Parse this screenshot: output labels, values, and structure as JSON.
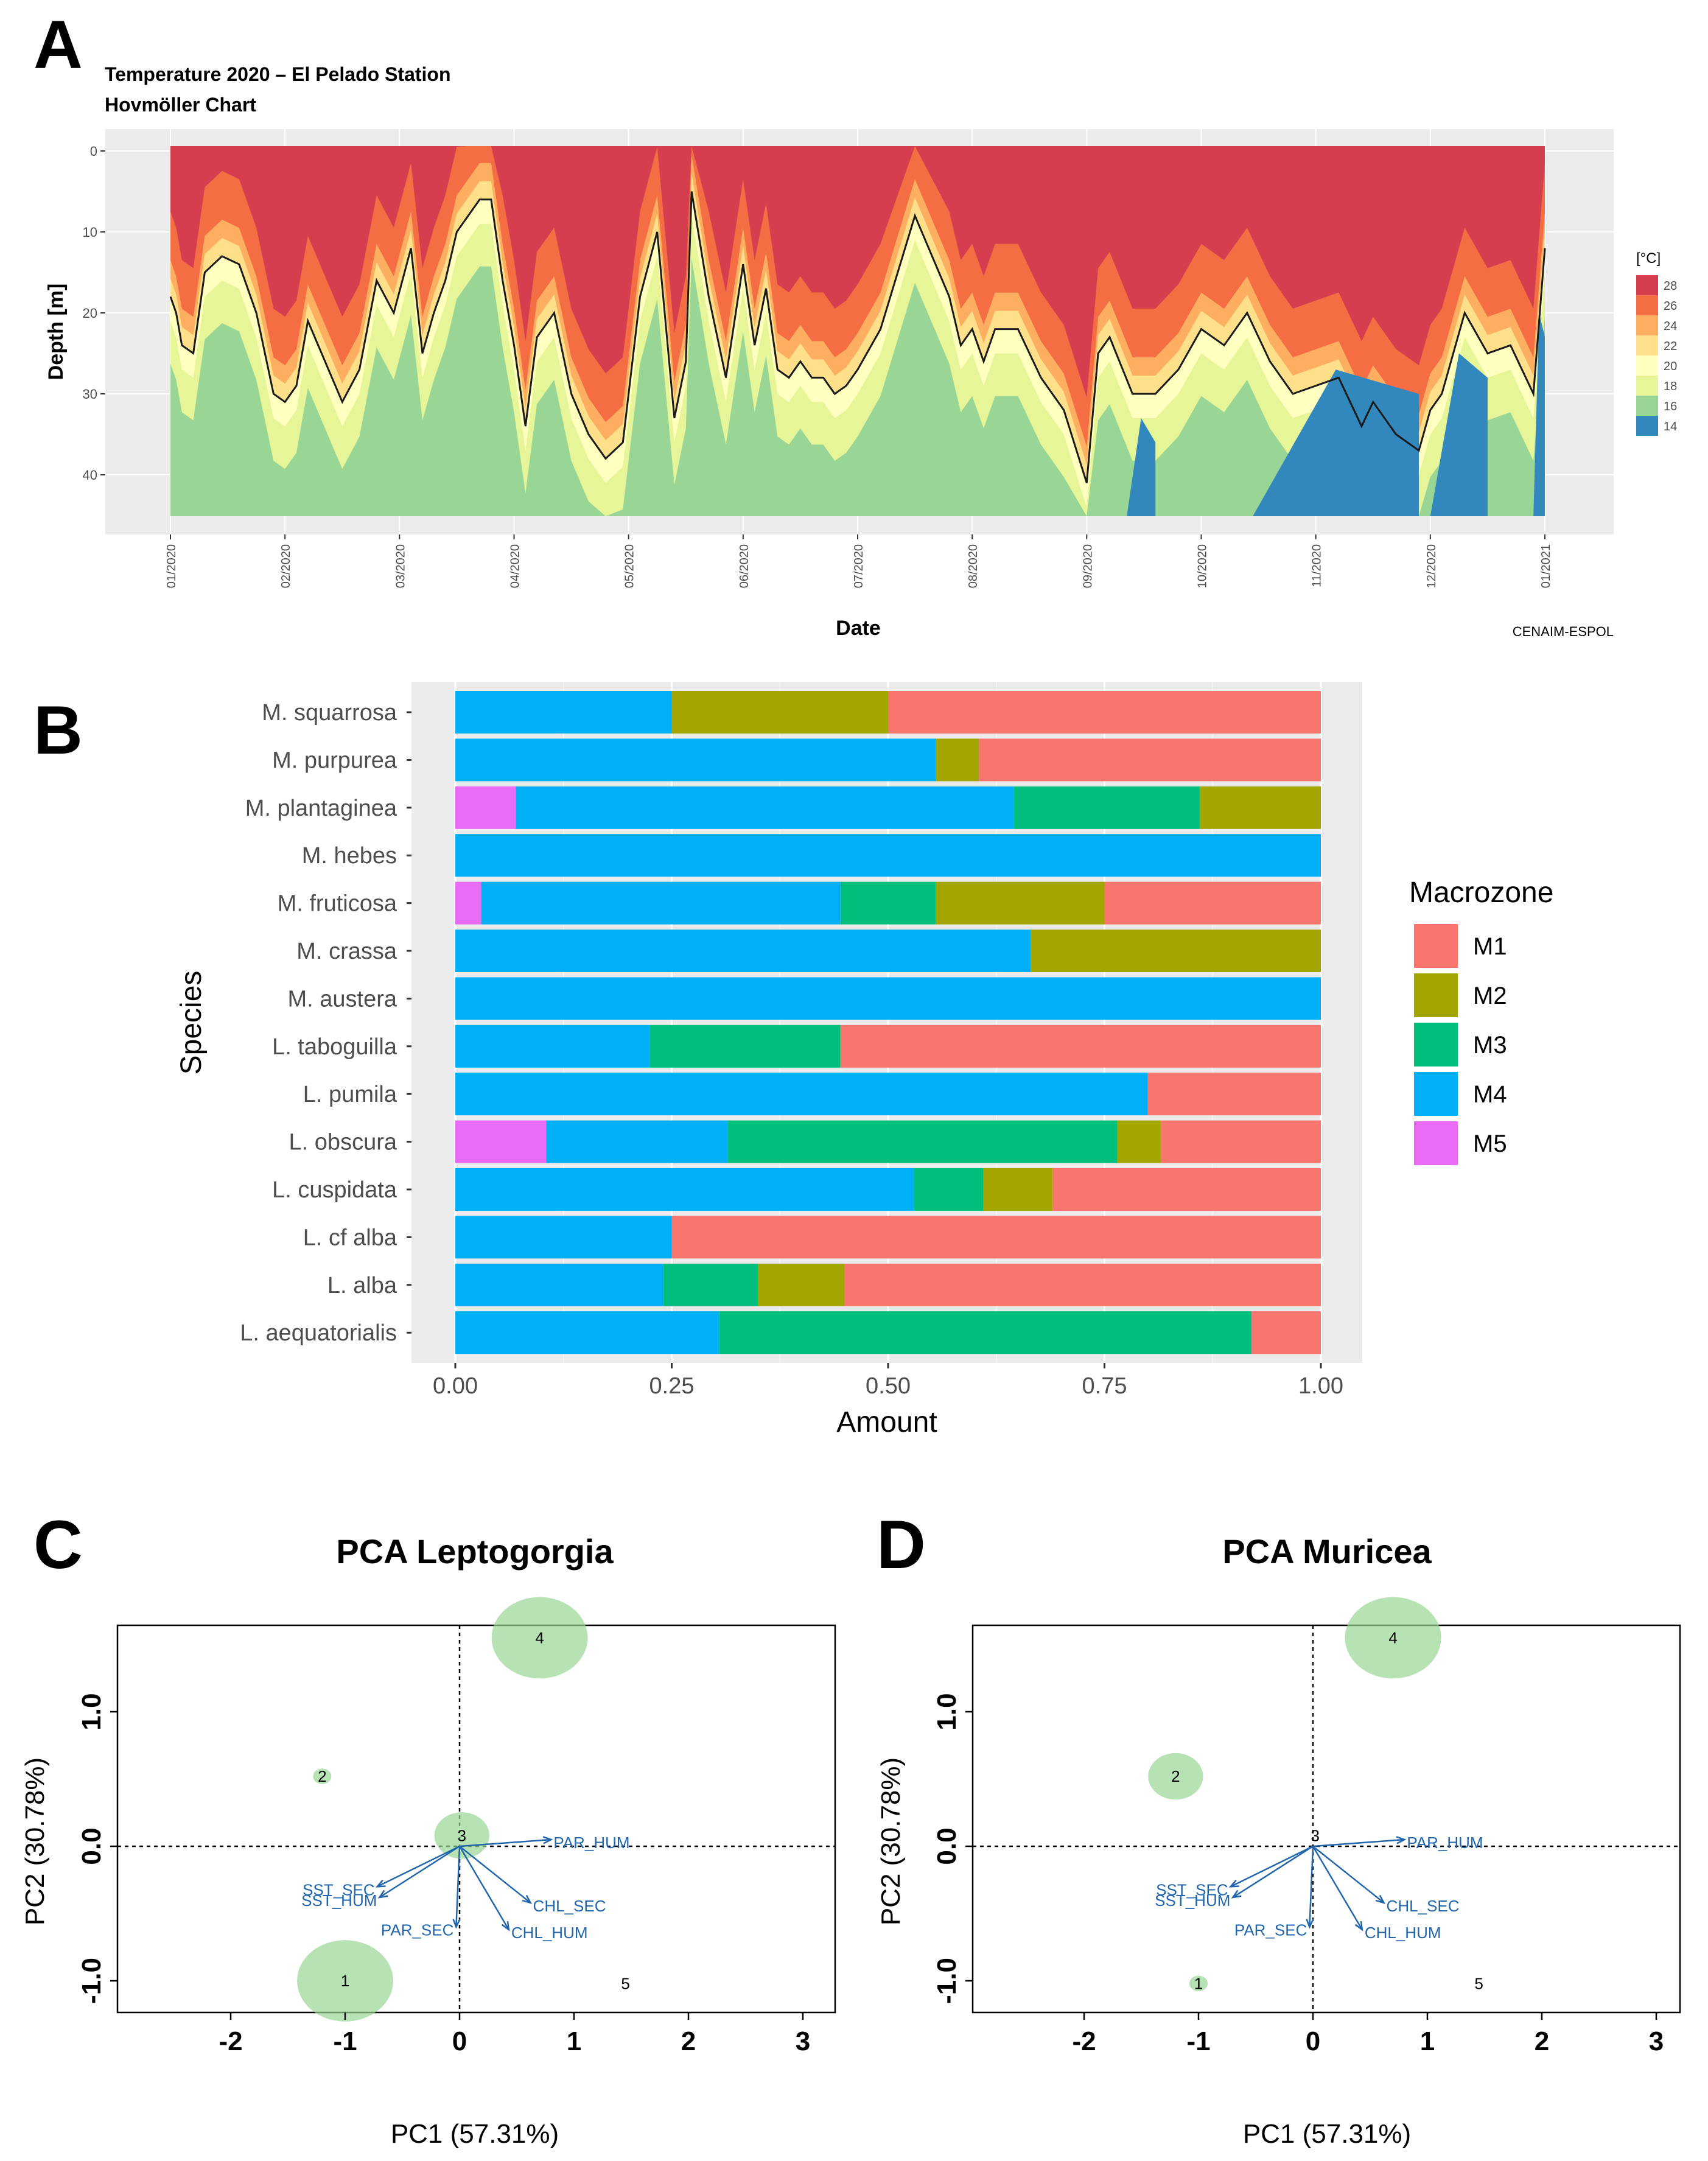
{
  "panels": {
    "a": "A",
    "b": "B",
    "c": "C",
    "d": "D"
  },
  "chart_data": [
    {
      "type": "heatmap",
      "title": "Temperature 2020 – El Pelado Station",
      "subtitle": "Hovmöller Chart",
      "xlabel": "Date",
      "ylabel": "Depth [m]",
      "credit": "CENAIM-ESPOL",
      "x_ticks": [
        "01/2020",
        "02/2020",
        "03/2020",
        "04/2020",
        "05/2020",
        "06/2020",
        "07/2020",
        "08/2020",
        "09/2020",
        "10/2020",
        "11/2020",
        "12/2020",
        "01/2021"
      ],
      "y_ticks": [
        "0",
        "10",
        "20",
        "30",
        "40"
      ],
      "ylim": [
        0,
        45
      ],
      "legend_title": "[°C]",
      "legend": [
        {
          "label": "28",
          "color": "#d53e4f"
        },
        {
          "label": "26",
          "color": "#f46d43"
        },
        {
          "label": "24",
          "color": "#fdae61"
        },
        {
          "label": "22",
          "color": "#fee08b"
        },
        {
          "label": "20",
          "color": "#ffffbf"
        },
        {
          "label": "18",
          "color": "#e6f598"
        },
        {
          "label": "16",
          "color": "#99d594"
        },
        {
          "label": "14",
          "color": "#3288bd"
        }
      ],
      "isotherm_depth_m": {
        "months": [
          0,
          0.05,
          0.1,
          0.2,
          0.3,
          0.45,
          0.6,
          0.75,
          0.9,
          1.0,
          1.1,
          1.2,
          1.35,
          1.5,
          1.65,
          1.8,
          1.95,
          2.1,
          2.2,
          2.3,
          2.4,
          2.5,
          2.6,
          2.7,
          2.8,
          2.9,
          3.0,
          3.1,
          3.2,
          3.35,
          3.5,
          3.65,
          3.8,
          3.95,
          4.1,
          4.25,
          4.4,
          4.5,
          4.55,
          4.7,
          4.85,
          5.0,
          5.1,
          5.2,
          5.3,
          5.4,
          5.5,
          5.6,
          5.7,
          5.8,
          5.9,
          6.0,
          6.2,
          6.5,
          6.8,
          6.9,
          7.0,
          7.1,
          7.2,
          7.4,
          7.6,
          7.8,
          8.0,
          8.1,
          8.2,
          8.4,
          8.6,
          8.8,
          9.0,
          9.2,
          9.4,
          9.6,
          9.8,
          10.0,
          10.2,
          10.4,
          10.5,
          10.7,
          10.9,
          11.0,
          11.1,
          11.3,
          11.5,
          11.7,
          11.9,
          12.0
        ],
        "depths": [
          18,
          20,
          24,
          25,
          15,
          13,
          14,
          20,
          30,
          31,
          29,
          21,
          26,
          31,
          27,
          16,
          20,
          12,
          25,
          20,
          16,
          10,
          8,
          6,
          6,
          16,
          24,
          34,
          23,
          20,
          30,
          35,
          38,
          36,
          18,
          10,
          33,
          26,
          5,
          18,
          28,
          14,
          24,
          17,
          27,
          28,
          26,
          28,
          28,
          30,
          29,
          27,
          22,
          8,
          18,
          24,
          22,
          26,
          22,
          22,
          28,
          32,
          41,
          25,
          23,
          30,
          30,
          27,
          22,
          24,
          20,
          26,
          30,
          29,
          28,
          34,
          31,
          35,
          37,
          32,
          30,
          20,
          25,
          24,
          30,
          12
        ]
      }
    },
    {
      "type": "bar",
      "orientation": "horizontal",
      "stacked": true,
      "xlabel": "Amount",
      "ylabel": "Species",
      "xlim": [
        0,
        1
      ],
      "x_ticks": [
        "0.00",
        "0.25",
        "0.50",
        "0.75",
        "1.00"
      ],
      "legend_title": "Macrozone",
      "series": [
        {
          "name": "M1",
          "color": "#f8766d"
        },
        {
          "name": "M2",
          "color": "#a3a500"
        },
        {
          "name": "M3",
          "color": "#00bf7d"
        },
        {
          "name": "M4",
          "color": "#00b0f6"
        },
        {
          "name": "M5",
          "color": "#e76bf3"
        }
      ],
      "stack_order": [
        "M5",
        "M4",
        "M3",
        "M2",
        "M1"
      ],
      "categories": [
        {
          "name": "M. squarrosa",
          "values": {
            "M1": 0.5,
            "M2": 0.25,
            "M3": 0,
            "M4": 0.25,
            "M5": 0
          }
        },
        {
          "name": "M. purpurea",
          "values": {
            "M1": 0.395,
            "M2": 0.05,
            "M3": 0,
            "M4": 0.555,
            "M5": 0
          }
        },
        {
          "name": "M. plantaginea",
          "values": {
            "M1": 0,
            "M2": 0.14,
            "M3": 0.215,
            "M4": 0.575,
            "M5": 0.07
          }
        },
        {
          "name": "M. hebes",
          "values": {
            "M1": 0,
            "M2": 0,
            "M3": 0,
            "M4": 1.0,
            "M5": 0
          }
        },
        {
          "name": "M. fruticosa",
          "values": {
            "M1": 0.25,
            "M2": 0.195,
            "M3": 0.11,
            "M4": 0.415,
            "M5": 0.03
          }
        },
        {
          "name": "M. crassa",
          "values": {
            "M1": 0,
            "M2": 0.335,
            "M3": 0,
            "M4": 0.665,
            "M5": 0
          }
        },
        {
          "name": "M. austera",
          "values": {
            "M1": 0,
            "M2": 0,
            "M3": 0,
            "M4": 1.0,
            "M5": 0
          }
        },
        {
          "name": "L. taboguilla",
          "values": {
            "M1": 0.555,
            "M2": 0,
            "M3": 0.22,
            "M4": 0.225,
            "M5": 0
          }
        },
        {
          "name": "L. pumila",
          "values": {
            "M1": 0.2,
            "M2": 0,
            "M3": 0,
            "M4": 0.8,
            "M5": 0
          }
        },
        {
          "name": "L. obscura",
          "values": {
            "M1": 0.185,
            "M2": 0.05,
            "M3": 0.45,
            "M4": 0.21,
            "M5": 0.105
          }
        },
        {
          "name": "L. cuspidata",
          "values": {
            "M1": 0.31,
            "M2": 0.08,
            "M3": 0.08,
            "M4": 0.53,
            "M5": 0
          }
        },
        {
          "name": "L. cf alba",
          "values": {
            "M1": 0.75,
            "M2": 0,
            "M3": 0,
            "M4": 0.25,
            "M5": 0
          }
        },
        {
          "name": "L. alba",
          "values": {
            "M1": 0.55,
            "M2": 0.1,
            "M3": 0.11,
            "M4": 0.24,
            "M5": 0
          }
        },
        {
          "name": "L. aequatorialis",
          "values": {
            "M1": 0.08,
            "M2": 0,
            "M3": 0.615,
            "M4": 0.305,
            "M5": 0
          }
        }
      ]
    },
    {
      "type": "scatter",
      "title": "PCA Leptogorgia",
      "xlabel": "PC1 (57.31%)",
      "ylabel": "PC2 (30.78%)",
      "xlim": [
        -3,
        3.2
      ],
      "ylim": [
        -1.35,
        1.65
      ],
      "x_ticks": [
        -2,
        -1,
        0,
        1,
        2,
        3
      ],
      "y_ticks": [
        -1.0,
        0.0,
        1.0
      ],
      "points": [
        {
          "label": "1",
          "x": -1.0,
          "y": -1.0,
          "size": 0.42
        },
        {
          "label": "2",
          "x": -1.2,
          "y": 0.52,
          "size": 0.08
        },
        {
          "label": "3",
          "x": 0.02,
          "y": 0.08,
          "size": 0.24
        },
        {
          "label": "4",
          "x": 0.7,
          "y": 1.55,
          "size": 0.42
        },
        {
          "label": "5",
          "x": 1.45,
          "y": -1.02,
          "size": 0
        }
      ],
      "vectors": [
        {
          "label": "PAR_HUM",
          "x": 0.8,
          "y": 0.05
        },
        {
          "label": "SST_SEC",
          "x": -0.72,
          "y": -0.3
        },
        {
          "label": "SST_HUM",
          "x": -0.7,
          "y": -0.38
        },
        {
          "label": "CHL_SEC",
          "x": 0.62,
          "y": -0.42
        },
        {
          "label": "PAR_SEC",
          "x": -0.03,
          "y": -0.6
        },
        {
          "label": "CHL_HUM",
          "x": 0.43,
          "y": -0.62
        }
      ]
    },
    {
      "type": "scatter",
      "title": "PCA Muricea",
      "xlabel": "PC1 (57.31%)",
      "ylabel": "PC2 (30.78%)",
      "xlim": [
        -3,
        3.2
      ],
      "ylim": [
        -1.35,
        1.65
      ],
      "x_ticks": [
        -2,
        -1,
        0,
        1,
        2,
        3
      ],
      "y_ticks": [
        -1.0,
        0.0,
        1.0
      ],
      "points": [
        {
          "label": "1",
          "x": -1.0,
          "y": -1.02,
          "size": 0.08
        },
        {
          "label": "2",
          "x": -1.2,
          "y": 0.52,
          "size": 0.24
        },
        {
          "label": "3",
          "x": 0.02,
          "y": 0.08,
          "size": 0
        },
        {
          "label": "4",
          "x": 0.7,
          "y": 1.55,
          "size": 0.42
        },
        {
          "label": "5",
          "x": 1.45,
          "y": -1.02,
          "size": 0
        }
      ],
      "vectors": [
        {
          "label": "PAR_HUM",
          "x": 0.8,
          "y": 0.05
        },
        {
          "label": "SST_SEC",
          "x": -0.72,
          "y": -0.3
        },
        {
          "label": "SST_HUM",
          "x": -0.7,
          "y": -0.38
        },
        {
          "label": "CHL_SEC",
          "x": 0.62,
          "y": -0.42
        },
        {
          "label": "PAR_SEC",
          "x": -0.03,
          "y": -0.6
        },
        {
          "label": "CHL_HUM",
          "x": 0.43,
          "y": -0.62
        }
      ]
    }
  ]
}
